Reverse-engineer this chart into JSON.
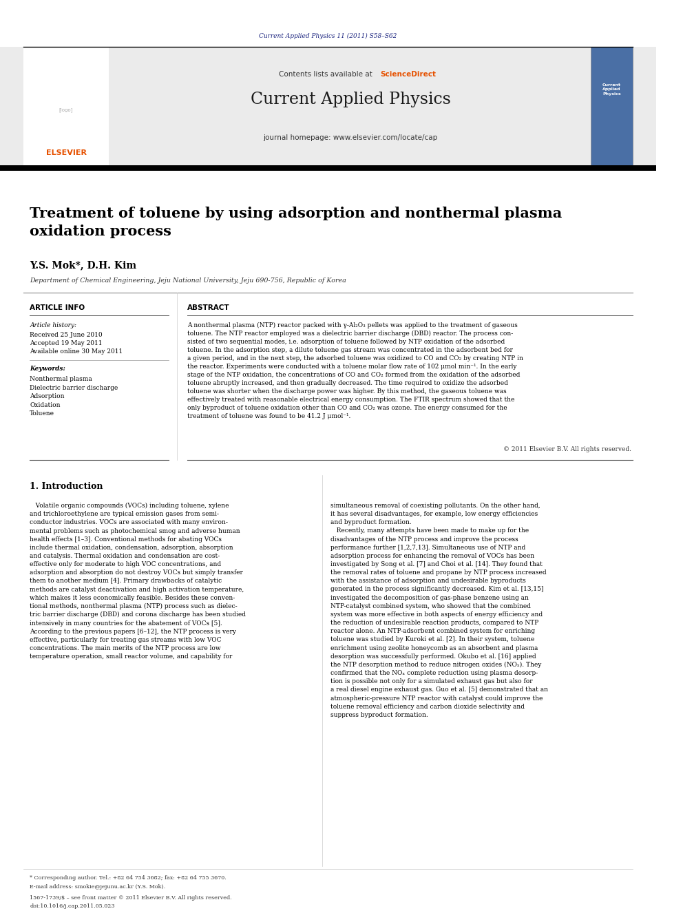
{
  "page_width": 9.92,
  "page_height": 13.23,
  "bg_color": "#ffffff",
  "header_journal_ref": "Current Applied Physics 11 (2011) S58–S62",
  "header_journal_ref_color": "#1a237e",
  "journal_name": "Current Applied Physics",
  "journal_homepage": "journal homepage: www.elsevier.com/locate/cap",
  "contents_text": "Contents lists available at ",
  "sciencedirect_text": "ScienceDirect",
  "sciencedirect_color": "#e65100",
  "elsevier_color": "#e65100",
  "elsevier_text": "ELSEVIER",
  "header_bg": "#ebebeb",
  "paper_title": "Treatment of toluene by using adsorption and nonthermal plasma\noxidation process",
  "authors": "Y.S. Mok*, D.H. Kim",
  "affiliation": "Department of Chemical Engineering, Jeju National University, Jeju 690-756, Republic of Korea",
  "article_info_header": "ARTICLE INFO",
  "article_history_label": "Article history:",
  "received": "Received 25 June 2010",
  "accepted": "Accepted 19 May 2011",
  "available": "Available online 30 May 2011",
  "keywords_label": "Keywords:",
  "keywords": [
    "Nonthermal plasma",
    "Dielectric barrier discharge",
    "Adsorption",
    "Oxidation",
    "Toluene"
  ],
  "abstract_header": "ABSTRACT",
  "copyright_text": "© 2011 Elsevier B.V. All rights reserved.",
  "intro_header": "1. Introduction",
  "footer_text1": "* Corresponding author. Tel.: +82 64 754 3682; fax: +82 64 755 3670.",
  "footer_text2": "E-mail address: smokie@jejunu.ac.kr (Y.S. Mok).",
  "footer_text3": "1567-1739/$ – see front matter © 2011 Elsevier B.V. All rights reserved.",
  "footer_text4": "doi:10.1016/j.cap.2011.05.023"
}
